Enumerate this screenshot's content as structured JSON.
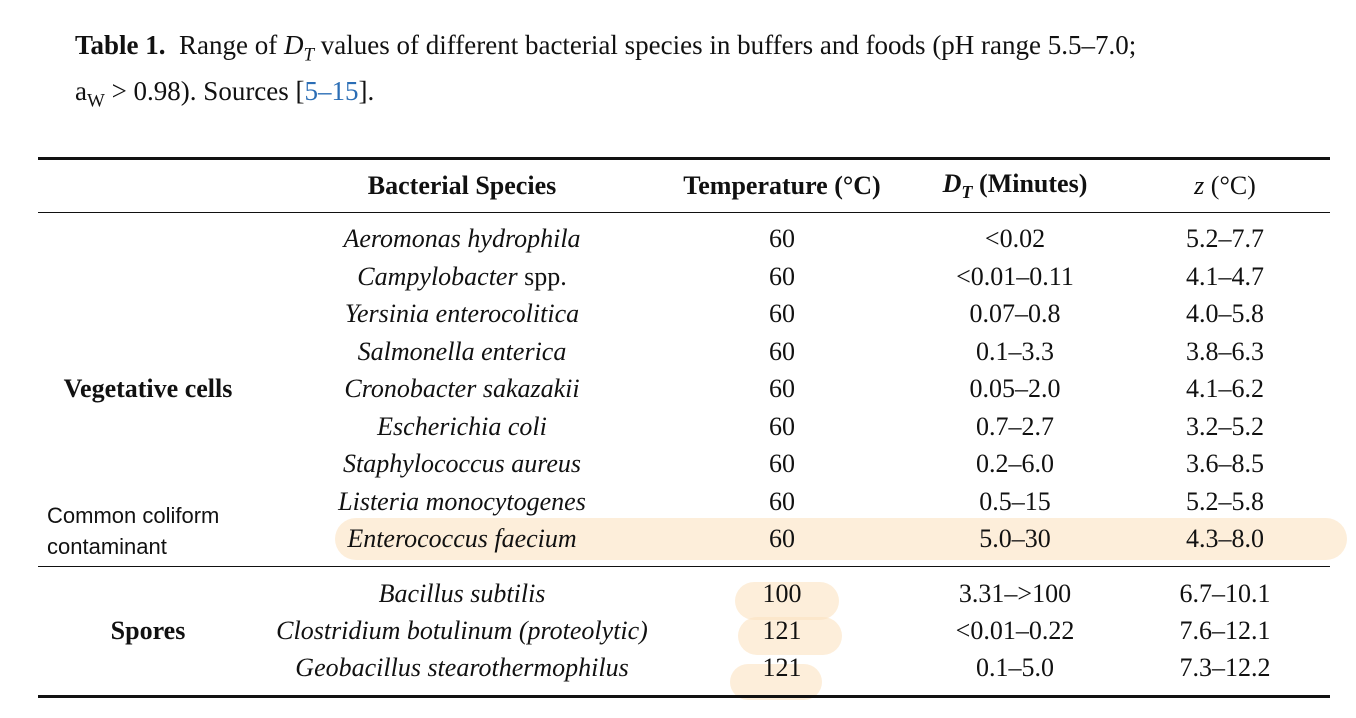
{
  "caption": {
    "label": "Table 1.",
    "text_before": "Range of ",
    "dt_symbol": "D",
    "dt_sub": "T",
    "text_after": " values of different bacterial species in buffers and foods (pH range 5.5–7.0;",
    "aw_symbol": "a",
    "aw_sub": "W",
    "line2_text": " > 0.98). Sources [",
    "ref_link": "5–15",
    "line2_end": "]."
  },
  "headers": {
    "species": "Bacterial Species",
    "temperature": "Temperature (°C)",
    "dt": "D",
    "dt_sub": "T",
    "dt_unit": " (Minutes)",
    "z": "z",
    "z_unit": " (°C)"
  },
  "groups": [
    {
      "label": "Vegetative cells",
      "rows": [
        {
          "species": "Aeromonas hydrophila",
          "suffix": "",
          "temperature": "60",
          "dt": "<0.02",
          "z": "5.2–7.7"
        },
        {
          "species": "Campylobacter",
          "suffix": " spp.",
          "temperature": "60",
          "dt": "<0.01–0.11",
          "z": "4.1–4.7"
        },
        {
          "species": "Yersinia enterocolitica",
          "suffix": "",
          "temperature": "60",
          "dt": "0.07–0.8",
          "z": "4.0–5.8"
        },
        {
          "species": "Salmonella enterica",
          "suffix": "",
          "temperature": "60",
          "dt": "0.1–3.3",
          "z": "3.8–6.3"
        },
        {
          "species": "Cronobacter sakazakii",
          "suffix": "",
          "temperature": "60",
          "dt": "0.05–2.0",
          "z": "4.1–6.2"
        },
        {
          "species": "Escherichia coli",
          "suffix": "",
          "temperature": "60",
          "dt": "0.7–2.7",
          "z": "3.2–5.2"
        },
        {
          "species": "Staphylococcus aureus",
          "suffix": "",
          "temperature": "60",
          "dt": "0.2–6.0",
          "z": "3.6–8.5"
        },
        {
          "species": "Listeria monocytogenes",
          "suffix": "",
          "temperature": "60",
          "dt": "0.5–15",
          "z": "5.2–5.8"
        },
        {
          "species": "Enterococcus faecium",
          "suffix": "",
          "temperature": "60",
          "dt": "5.0–30",
          "z": "4.3–8.0",
          "highlighted": true
        }
      ]
    },
    {
      "label": "Spores",
      "rows": [
        {
          "species": "Bacillus subtilis",
          "suffix": "",
          "temperature": "100",
          "dt": "3.31–>100",
          "z": "6.7–10.1",
          "temp_highlighted": true
        },
        {
          "species": "Clostridium botulinum (proteolytic)",
          "suffix": "",
          "temperature": "121",
          "dt": "<0.01–0.22",
          "z": "7.6–12.1",
          "temp_highlighted": true
        },
        {
          "species": "Geobacillus stearothermophilus",
          "suffix": "",
          "temperature": "121",
          "dt": "0.1–5.0",
          "z": "7.3–12.2",
          "temp_highlighted": true
        }
      ]
    }
  ],
  "annotation": {
    "line1": "Common coliform",
    "line2": "contaminant"
  },
  "highlight_color": "#fbe3c2"
}
